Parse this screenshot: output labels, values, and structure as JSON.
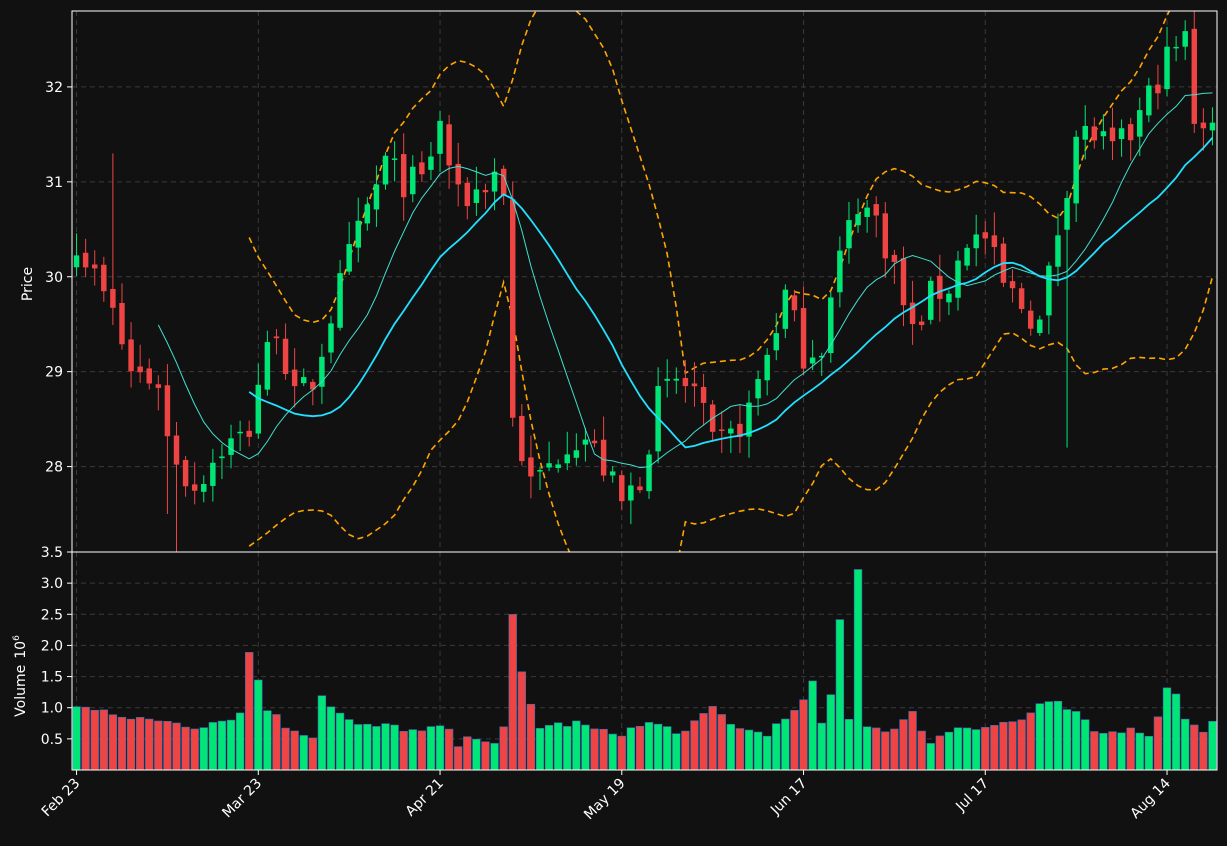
{
  "chart_data": {
    "type": "candlestick",
    "theme": {
      "background": "#111111",
      "grid": "#3a3a3a",
      "axis": "#ffffff",
      "up": "#00e676",
      "down": "#ef4444",
      "ma_fast": "#40e0d0",
      "ma_slow": "#22e0ff",
      "bands": "#ffa500"
    },
    "price_panel": {
      "ylabel": "Price",
      "ylim": [
        27.1,
        32.8
      ],
      "yticks": [
        28,
        29,
        30,
        31,
        32
      ],
      "grid": true
    },
    "volume_panel": {
      "ylabel": "Volume",
      "ylabel_exponent": "6",
      "ylim": [
        0.0,
        3.5
      ],
      "yticks": [
        0.5,
        1.0,
        1.5,
        2.0,
        2.5,
        3.0,
        3.5
      ],
      "ytick_labels": [
        "0.5",
        "1.0",
        "1.5",
        "2.0",
        "2.5",
        "3.0",
        "3.5"
      ],
      "grid": true
    },
    "xaxis": {
      "n_bars": 126,
      "ticks": [
        {
          "index": 0,
          "label": "Feb 23"
        },
        {
          "index": 20,
          "label": "Mar 23"
        },
        {
          "index": 40,
          "label": "Apr 21"
        },
        {
          "index": 60,
          "label": "May 19"
        },
        {
          "index": 80,
          "label": "Jun 17"
        },
        {
          "index": 100,
          "label": "Jul 17"
        },
        {
          "index": 120,
          "label": "Aug 14"
        }
      ]
    },
    "anchors": {
      "price": [
        [
          0,
          30.4
        ],
        [
          4,
          29.6
        ],
        [
          6,
          29.0
        ],
        [
          9,
          28.9
        ],
        [
          10,
          28.3
        ],
        [
          12,
          27.9
        ],
        [
          13,
          27.8
        ],
        [
          16,
          28.2
        ],
        [
          18,
          28.3
        ],
        [
          19,
          28.4
        ],
        [
          20,
          28.9
        ],
        [
          22,
          29.5
        ],
        [
          24,
          28.7
        ],
        [
          26,
          28.9
        ],
        [
          28,
          29.6
        ],
        [
          30,
          30.2
        ],
        [
          32,
          30.7
        ],
        [
          34,
          31.2
        ],
        [
          36,
          31.0
        ],
        [
          38,
          31.0
        ],
        [
          40,
          31.6
        ],
        [
          42,
          30.8
        ],
        [
          44,
          30.9
        ],
        [
          46,
          31.1
        ],
        [
          47,
          30.9
        ],
        [
          48,
          28.5
        ],
        [
          50,
          27.8
        ],
        [
          52,
          28.0
        ],
        [
          54,
          28.3
        ],
        [
          56,
          28.3
        ],
        [
          58,
          28.0
        ],
        [
          60,
          27.6
        ],
        [
          62,
          27.9
        ],
        [
          64,
          28.7
        ],
        [
          66,
          28.9
        ],
        [
          68,
          28.8
        ],
        [
          70,
          28.2
        ],
        [
          72,
          28.3
        ],
        [
          74,
          28.6
        ],
        [
          76,
          29.2
        ],
        [
          78,
          29.8
        ],
        [
          80,
          29.2
        ],
        [
          82,
          29.3
        ],
        [
          84,
          30.2
        ],
        [
          86,
          30.8
        ],
        [
          88,
          30.6
        ],
        [
          90,
          30.1
        ],
        [
          91,
          29.7
        ],
        [
          92,
          29.4
        ],
        [
          94,
          29.8
        ],
        [
          96,
          29.9
        ],
        [
          98,
          30.4
        ],
        [
          100,
          30.4
        ],
        [
          102,
          29.9
        ],
        [
          104,
          29.7
        ],
        [
          106,
          29.5
        ],
        [
          108,
          30.5
        ],
        [
          110,
          31.5
        ],
        [
          112,
          31.5
        ],
        [
          114,
          31.3
        ],
        [
          116,
          31.5
        ],
        [
          118,
          31.9
        ],
        [
          120,
          32.3
        ],
        [
          122,
          32.5
        ],
        [
          123,
          31.7
        ],
        [
          125,
          31.6
        ]
      ],
      "volume": [
        [
          0,
          1.0
        ],
        [
          3,
          1.0
        ],
        [
          6,
          0.8
        ],
        [
          10,
          0.8
        ],
        [
          13,
          0.7
        ],
        [
          16,
          0.8
        ],
        [
          18,
          0.9
        ],
        [
          19,
          1.9
        ],
        [
          21,
          1.0
        ],
        [
          23,
          0.7
        ],
        [
          25,
          0.6
        ],
        [
          26,
          0.55
        ],
        [
          27,
          1.2
        ],
        [
          29,
          0.9
        ],
        [
          31,
          0.7
        ],
        [
          35,
          0.7
        ],
        [
          38,
          0.6
        ],
        [
          40,
          0.7
        ],
        [
          41,
          0.6
        ],
        [
          42,
          0.4
        ],
        [
          44,
          0.55
        ],
        [
          46,
          0.45
        ],
        [
          47,
          0.65
        ],
        [
          48,
          2.45
        ],
        [
          49,
          1.55
        ],
        [
          50,
          1.05
        ],
        [
          51,
          0.7
        ],
        [
          55,
          0.75
        ],
        [
          58,
          0.6
        ],
        [
          60,
          0.6
        ],
        [
          63,
          0.75
        ],
        [
          67,
          0.6
        ],
        [
          70,
          1.0
        ],
        [
          73,
          0.65
        ],
        [
          76,
          0.6
        ],
        [
          79,
          0.9
        ],
        [
          81,
          1.4
        ],
        [
          82,
          0.7
        ],
        [
          83,
          1.2
        ],
        [
          84,
          2.4
        ],
        [
          85,
          0.85
        ],
        [
          86,
          3.25
        ],
        [
          87,
          0.7
        ],
        [
          90,
          0.65
        ],
        [
          92,
          0.9
        ],
        [
          94,
          0.45
        ],
        [
          97,
          0.7
        ],
        [
          100,
          0.7
        ],
        [
          104,
          0.8
        ],
        [
          106,
          1.05
        ],
        [
          108,
          1.05
        ],
        [
          110,
          0.9
        ],
        [
          112,
          0.6
        ],
        [
          114,
          0.6
        ],
        [
          116,
          0.7
        ],
        [
          117,
          0.65
        ],
        [
          118,
          0.5
        ],
        [
          119,
          0.9
        ],
        [
          120,
          1.35
        ],
        [
          121,
          1.2
        ],
        [
          122,
          0.85
        ],
        [
          124,
          0.65
        ],
        [
          125,
          0.75
        ]
      ]
    },
    "wick_outliers": [
      {
        "index": 10,
        "low": 27.5
      },
      {
        "index": 11,
        "low": 27.1
      },
      {
        "index": 109,
        "low": 28.2
      },
      {
        "index": 4,
        "high": 31.3
      }
    ],
    "series": [
      {
        "id": "ma-fast",
        "window": 10
      },
      {
        "id": "ma-slow",
        "window": 20
      },
      {
        "id": "bands",
        "window": 20,
        "k": 2
      }
    ]
  }
}
